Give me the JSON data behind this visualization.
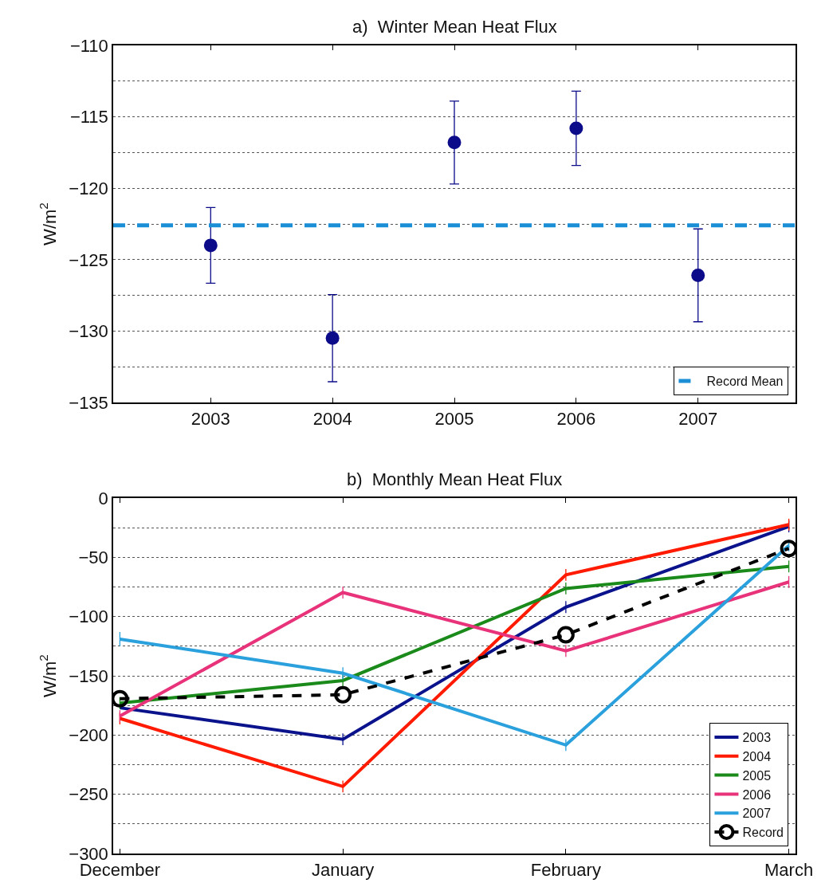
{
  "chart_data": [
    {
      "type": "scatter",
      "title": "a)  Winter Mean Heat Flux",
      "ylabel": "W/m$^{2}$",
      "x": [
        2003,
        2004,
        2005,
        2006,
        2007
      ],
      "series": [
        {
          "color": "#0c0c8a",
          "values": [
            -124.0,
            -130.5,
            -116.8,
            -115.8,
            -126.1
          ],
          "errors": [
            2.65,
            3.05,
            2.9,
            2.6,
            3.25
          ]
        }
      ],
      "marker": "circle",
      "xlim": [
        2002.2,
        2007.8
      ],
      "xticks": [
        2003,
        2004,
        2005,
        2006,
        2007
      ],
      "ylim": [
        -135,
        -110
      ],
      "yticks": [
        -135,
        {
          "value": -132.5,
          "label": null
        },
        -130,
        {
          "value": -127.5,
          "label": null
        },
        -125,
        {
          "value": -122.5,
          "label": null
        },
        -120,
        {
          "value": -117.5,
          "label": null
        },
        -115,
        {
          "value": -112.5,
          "label": null
        },
        -110
      ],
      "grid": "y",
      "legend": "bottom right",
      "ref_lines": [
        {
          "axis": "y",
          "value": -122.6,
          "label": "Record Mean",
          "color": "#1a8fd6",
          "line_style": "dashed"
        }
      ]
    },
    {
      "type": "line",
      "title": "b)  Monthly Mean Heat Flux",
      "ylabel": "W/m$^{2}$",
      "categories": [
        "December",
        "January",
        "February",
        "March"
      ],
      "series": [
        {
          "name": "2003",
          "color": "#0a128c",
          "values": [
            -177,
            -203.6,
            -92,
            -23.9
          ],
          "errors": [
            null,
            5,
            5,
            5
          ]
        },
        {
          "name": "2004",
          "color": "#ff1a00",
          "values": [
            -186,
            -243.4,
            -64.8,
            -22.4
          ],
          "errors": [
            5,
            5,
            5,
            5
          ]
        },
        {
          "name": "2005",
          "color": "#1a8a1a",
          "values": [
            -173,
            -154,
            -76.3,
            -57.7
          ],
          "errors": [
            5,
            5,
            5,
            5
          ]
        },
        {
          "name": "2006",
          "color": "#e8327a",
          "values": [
            -184,
            -79.7,
            -129,
            -70.8
          ],
          "errors": [
            5,
            5,
            5,
            5
          ]
        },
        {
          "name": "2007",
          "color": "#2aa0dc",
          "values": [
            -119,
            -147.8,
            -208.4,
            -40
          ],
          "errors": [
            6,
            5,
            5,
            5
          ]
        },
        {
          "name": "Record",
          "color": "#000000",
          "values": [
            -169.3,
            -166,
            -115.4,
            -42.5
          ],
          "marker": "circle",
          "line_style": "dashed"
        }
      ],
      "line_style": "solid",
      "ylim": [
        -300,
        0
      ],
      "yticks": [
        -300,
        {
          "value": -275,
          "label": null
        },
        -250,
        {
          "value": -225,
          "label": null
        },
        -200,
        {
          "value": -175,
          "label": null
        },
        -150,
        {
          "value": -125,
          "label": null
        },
        -100,
        {
          "value": -75,
          "label": null
        },
        -50,
        {
          "value": -25,
          "label": null
        },
        0
      ],
      "grid": "y",
      "legend": "bottom right"
    }
  ]
}
